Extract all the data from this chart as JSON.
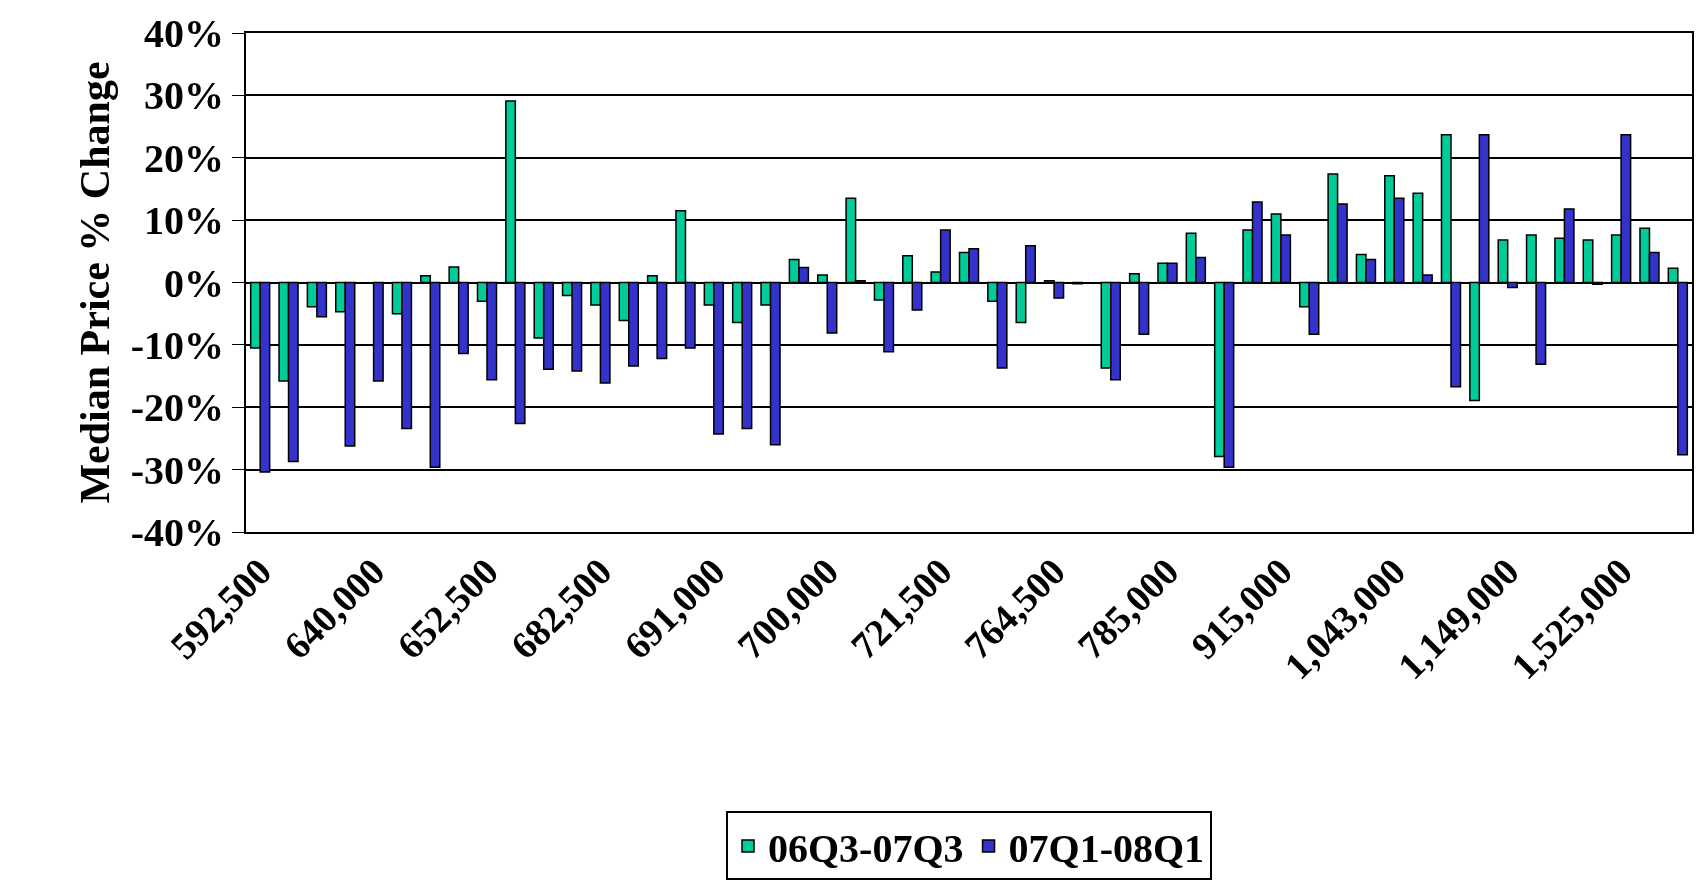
{
  "chart_data": {
    "type": "bar",
    "ylabel": "Median Price % Change",
    "categories": [
      "592,500",
      null,
      null,
      null,
      "640,000",
      null,
      null,
      null,
      "652,500",
      null,
      null,
      null,
      "682,500",
      null,
      null,
      null,
      "691,000",
      null,
      null,
      null,
      "700,000",
      null,
      null,
      null,
      "721,500",
      null,
      null,
      null,
      "764,500",
      null,
      null,
      null,
      "785,000",
      null,
      null,
      null,
      "915,000",
      null,
      null,
      null,
      "1,043,000",
      null,
      null,
      null,
      "1,149,000",
      null,
      null,
      null,
      "1,525,000",
      null,
      null
    ],
    "series": [
      {
        "name": "06Q3-07Q3",
        "color": "#00cc99",
        "values": [
          -10.5,
          -15.8,
          -3.9,
          -4.7,
          null,
          -5.0,
          1.1,
          2.5,
          -3.0,
          29.1,
          -8.9,
          -2.1,
          -3.6,
          -6.1,
          1.1,
          11.5,
          -3.6,
          -6.4,
          -3.6,
          3.7,
          1.2,
          13.5,
          -2.8,
          4.3,
          1.7,
          4.8,
          -3.0,
          -6.4,
          0.3,
          -0.2,
          -13.7,
          1.4,
          3.1,
          7.9,
          -27.9,
          8.4,
          11.0,
          -3.9,
          17.4,
          4.5,
          17.1,
          14.3,
          23.7,
          -18.9,
          6.8,
          7.6,
          7.1,
          6.8,
          7.6,
          8.7,
          2.3
        ]
      },
      {
        "name": "07Q1-08Q1",
        "color": "#3333cc",
        "values": [
          -30.4,
          -28.7,
          -5.5,
          -26.2,
          -15.8,
          -23.4,
          -29.6,
          -11.4,
          -15.6,
          -22.6,
          -13.9,
          -14.2,
          -16.1,
          -13.4,
          -12.2,
          -10.5,
          -24.3,
          -23.4,
          -26.0,
          2.4,
          -8.1,
          0.3,
          -11.1,
          -4.4,
          8.4,
          5.4,
          -13.7,
          5.9,
          -2.5,
          null,
          -15.6,
          -8.3,
          3.1,
          4.0,
          -29.6,
          12.9,
          7.6,
          -8.3,
          12.6,
          3.7,
          13.5,
          1.2,
          -16.7,
          23.7,
          -0.8,
          -13.1,
          11.8,
          -0.3,
          23.7,
          4.8,
          -27.6
        ]
      }
    ],
    "ylim": [
      -40,
      40
    ],
    "yticks": [
      {
        "value": -40,
        "label": "-40%"
      },
      {
        "value": -30,
        "label": "-30%"
      },
      {
        "value": -20,
        "label": "-20%"
      },
      {
        "value": -10,
        "label": "-10%"
      },
      {
        "value": 0,
        "label": "0%"
      },
      {
        "value": 10,
        "label": "10%"
      },
      {
        "value": 20,
        "label": "20%"
      },
      {
        "value": 30,
        "label": "30%"
      },
      {
        "value": 40,
        "label": "40%"
      }
    ],
    "grid": "y",
    "legend": "bottom"
  }
}
